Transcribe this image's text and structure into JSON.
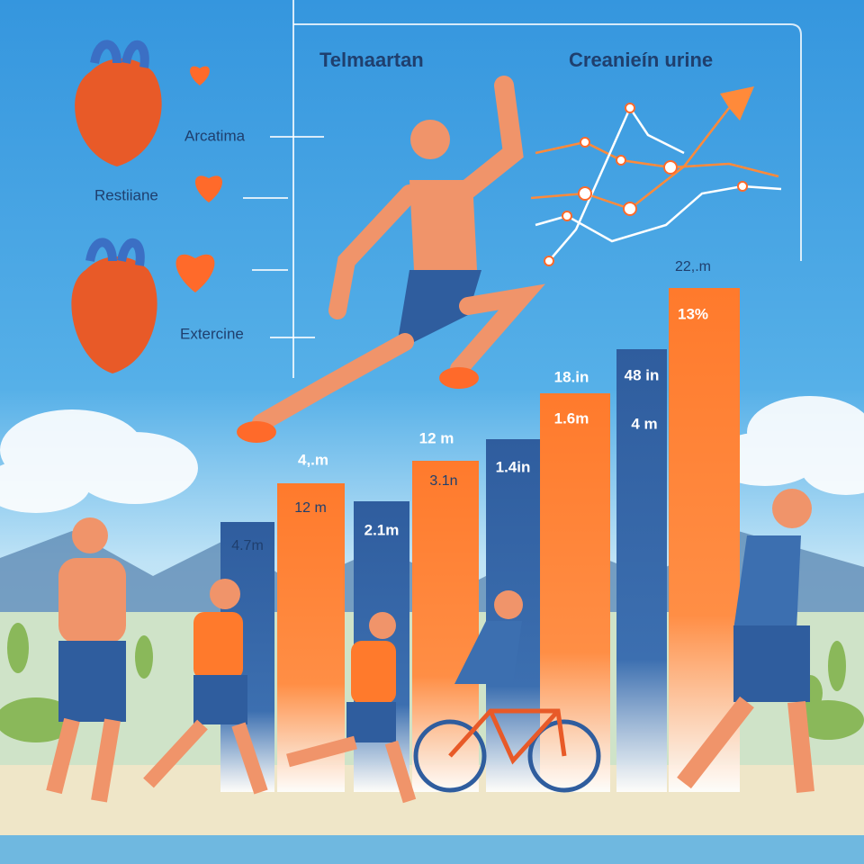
{
  "header": {
    "title_left": "Telmaartan",
    "title_right": "Creanieín urine"
  },
  "side_labels": [
    "Arcatima",
    "Restiiane",
    "Extercine"
  ],
  "bars": [
    {
      "labels": [
        "4.7m"
      ]
    },
    {
      "labels": [
        "4,.m",
        "12 m"
      ]
    },
    {
      "labels": [
        "2.1m"
      ]
    },
    {
      "labels": [
        "12 m",
        "3.1n"
      ]
    },
    {
      "labels": [
        "1.4in"
      ]
    },
    {
      "labels": [
        "18.in",
        "1.6m"
      ]
    },
    {
      "labels": [
        "48 in",
        "4 m"
      ]
    },
    {
      "labels": [
        "22,.m",
        "13%"
      ]
    }
  ]
}
